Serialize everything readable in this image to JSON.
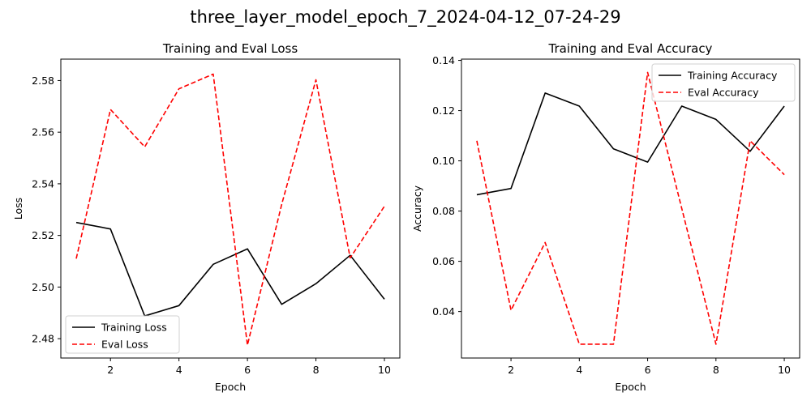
{
  "suptitle": "three_layer_model_epoch_7_2024-04-12_07-24-29",
  "colors": {
    "training": "#000000",
    "eval": "#ff0000"
  },
  "chart_data": [
    {
      "type": "line",
      "title": "Training and Eval Loss",
      "xlabel": "Epoch",
      "ylabel": "Loss",
      "x": [
        1,
        2,
        3,
        4,
        5,
        6,
        7,
        8,
        9,
        10
      ],
      "xlim": [
        0.55,
        10.45
      ],
      "ylim": [
        2.4725,
        2.5883
      ],
      "xticks": [
        2,
        4,
        6,
        8,
        10
      ],
      "yticks": [
        2.48,
        2.5,
        2.52,
        2.54,
        2.56,
        2.58
      ],
      "ytick_decimals": 2,
      "legend_position": "lower-left",
      "grid": false,
      "series": [
        {
          "name": "Training Loss",
          "style": "solid",
          "color": "#000000",
          "values": [
            2.525,
            2.5225,
            2.4888,
            2.4928,
            2.5088,
            2.5148,
            2.4933,
            2.5013,
            2.5123,
            2.4953
          ]
        },
        {
          "name": "Eval Loss",
          "style": "dashed",
          "color": "#ff0000",
          "values": [
            2.511,
            2.5688,
            2.5543,
            2.5768,
            2.5825,
            2.4775,
            2.532,
            2.5803,
            2.5113,
            2.5313
          ]
        }
      ]
    },
    {
      "type": "line",
      "title": "Training and Eval Accuracy",
      "xlabel": "Epoch",
      "ylabel": "Accuracy",
      "x": [
        1,
        2,
        3,
        4,
        5,
        6,
        7,
        8,
        9,
        10
      ],
      "xlim": [
        0.55,
        10.45
      ],
      "ylim": [
        0.0215,
        0.1405
      ],
      "xticks": [
        2,
        4,
        6,
        8,
        10
      ],
      "yticks": [
        0.04,
        0.06,
        0.08,
        0.1,
        0.12,
        0.14
      ],
      "ytick_decimals": 2,
      "legend_position": "top-right",
      "grid": false,
      "series": [
        {
          "name": "Training Accuracy",
          "style": "solid",
          "color": "#000000",
          "values": [
            0.0865,
            0.089,
            0.127,
            0.1218,
            0.1048,
            0.0995,
            0.1218,
            0.1165,
            0.1038,
            0.1218
          ]
        },
        {
          "name": "Eval Accuracy",
          "style": "dashed",
          "color": "#ff0000",
          "values": [
            0.108,
            0.0405,
            0.0675,
            0.027,
            0.027,
            0.1352,
            0.081,
            0.027,
            0.108,
            0.0945
          ]
        }
      ]
    }
  ]
}
